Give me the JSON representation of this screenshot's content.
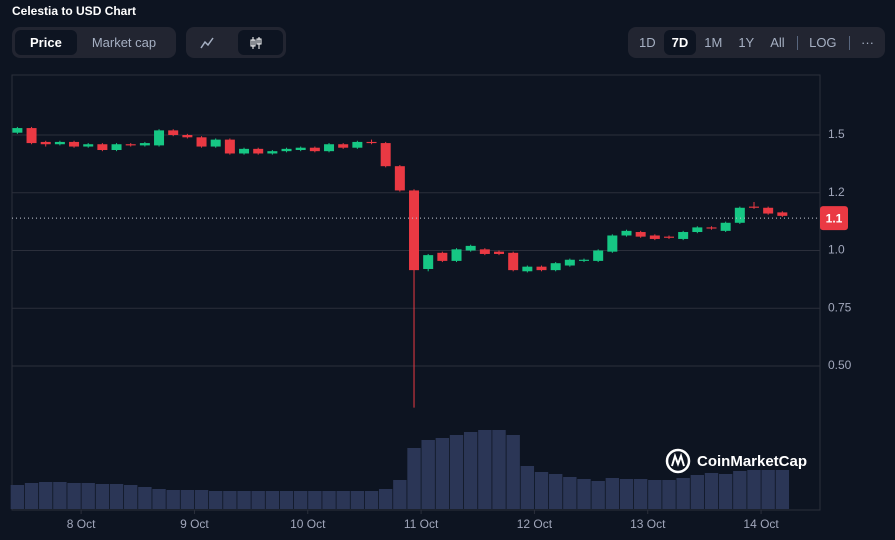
{
  "header": {
    "title": "Celestia to USD Chart"
  },
  "toolbar": {
    "modes": [
      "Price",
      "Market cap"
    ],
    "ranges": [
      "1D",
      "7D",
      "1M",
      "1Y",
      "All"
    ],
    "scale": "LOG",
    "more": "···"
  },
  "chart_data": {
    "type": "candlestick",
    "watermark": "CoinMarketCap",
    "x": [
      7.4375,
      7.5625,
      7.6875,
      7.8125,
      7.9375,
      8.0625,
      8.1875,
      8.3125,
      8.4375,
      8.5625,
      8.6875,
      8.8125,
      8.9375,
      9.0625,
      9.1875,
      9.3125,
      9.4375,
      9.5625,
      9.6875,
      9.8125,
      9.9375,
      10.0625,
      10.1875,
      10.3125,
      10.4375,
      10.5625,
      10.6875,
      10.8125,
      10.9375,
      11.0625,
      11.1875,
      11.3125,
      11.4375,
      11.5625,
      11.6875,
      11.8125,
      11.9375,
      12.0625,
      12.1875,
      12.3125,
      12.4375,
      12.5625,
      12.6875,
      12.8125,
      12.9375,
      13.0625,
      13.1875,
      13.3125,
      13.4375,
      13.5625,
      13.6875,
      13.8125,
      13.9375,
      14.0625,
      14.1875
    ],
    "open": [
      1.51,
      1.53,
      1.47,
      1.46,
      1.47,
      1.45,
      1.46,
      1.435,
      1.46,
      1.455,
      1.455,
      1.52,
      1.5,
      1.49,
      1.45,
      1.48,
      1.42,
      1.44,
      1.42,
      1.43,
      1.435,
      1.445,
      1.43,
      1.46,
      1.445,
      1.47,
      1.465,
      1.365,
      1.26,
      0.92,
      0.99,
      0.955,
      1.0,
      1.005,
      0.995,
      0.99,
      0.91,
      0.93,
      0.915,
      0.935,
      0.955,
      0.955,
      0.995,
      1.065,
      1.08,
      1.065,
      1.06,
      1.05,
      1.08,
      1.1,
      1.085,
      1.12,
      1.19,
      1.185,
      1.165
    ],
    "high": [
      1.535,
      1.535,
      1.475,
      1.475,
      1.475,
      1.465,
      1.465,
      1.465,
      1.465,
      1.47,
      1.525,
      1.525,
      1.505,
      1.495,
      1.485,
      1.485,
      1.445,
      1.445,
      1.435,
      1.445,
      1.45,
      1.45,
      1.465,
      1.465,
      1.475,
      1.48,
      1.47,
      1.37,
      1.265,
      0.985,
      0.995,
      1.01,
      1.025,
      1.01,
      1.0,
      0.995,
      0.935,
      0.935,
      0.95,
      0.965,
      0.965,
      1.005,
      1.07,
      1.09,
      1.085,
      1.07,
      1.065,
      1.085,
      1.105,
      1.105,
      1.125,
      1.19,
      1.21,
      1.19,
      1.17
    ],
    "low": [
      1.505,
      1.46,
      1.45,
      1.455,
      1.445,
      1.445,
      1.43,
      1.43,
      1.45,
      1.45,
      1.45,
      1.495,
      1.485,
      1.445,
      1.445,
      1.415,
      1.415,
      1.415,
      1.415,
      1.425,
      1.43,
      1.425,
      1.425,
      1.44,
      1.44,
      1.46,
      1.36,
      1.255,
      0.32,
      0.91,
      0.95,
      0.95,
      0.995,
      0.98,
      0.98,
      0.91,
      0.905,
      0.91,
      0.91,
      0.93,
      0.95,
      0.95,
      0.99,
      1.06,
      1.055,
      1.045,
      1.05,
      1.045,
      1.075,
      1.09,
      1.08,
      1.115,
      1.18,
      1.155,
      1.145
    ],
    "close": [
      1.53,
      1.465,
      1.46,
      1.47,
      1.45,
      1.46,
      1.435,
      1.46,
      1.455,
      1.465,
      1.52,
      1.5,
      1.49,
      1.45,
      1.48,
      1.42,
      1.44,
      1.42,
      1.43,
      1.44,
      1.445,
      1.43,
      1.46,
      1.445,
      1.47,
      1.465,
      1.365,
      1.26,
      0.915,
      0.98,
      0.955,
      1.005,
      1.02,
      0.985,
      0.985,
      0.915,
      0.93,
      0.915,
      0.945,
      0.96,
      0.96,
      1.0,
      1.065,
      1.085,
      1.06,
      1.05,
      1.055,
      1.08,
      1.1,
      1.095,
      1.12,
      1.185,
      1.185,
      1.16,
      1.15
    ],
    "volume": [
      24,
      26,
      27,
      27,
      26,
      26,
      25,
      25,
      24,
      22,
      20,
      19,
      19,
      19,
      18,
      18,
      18,
      18,
      18,
      18,
      18,
      18,
      18,
      18,
      18,
      18,
      20,
      29,
      61,
      69,
      71,
      74,
      77,
      79,
      79,
      74,
      43,
      37,
      35,
      32,
      30,
      28,
      31,
      30,
      30,
      29,
      29,
      31,
      34,
      36,
      35,
      38,
      39,
      39,
      39
    ],
    "volume_lim": [
      0,
      100
    ],
    "xlim": [
      7.39,
      14.52
    ],
    "xticks": [
      {
        "value": 8,
        "label": "8 Oct"
      },
      {
        "value": 9,
        "label": "9 Oct"
      },
      {
        "value": 10,
        "label": "10 Oct"
      },
      {
        "value": 11,
        "label": "11 Oct"
      },
      {
        "value": 12,
        "label": "12 Oct"
      },
      {
        "value": 13,
        "label": "13 Oct"
      },
      {
        "value": 14,
        "label": "14 Oct"
      }
    ],
    "ylim": [
      0.25,
      1.75
    ],
    "yticks": [
      1.5,
      {
        "value": 1.25,
        "label": "1.2"
      },
      {
        "value": 1,
        "label": "1.0"
      },
      0.75,
      {
        "value": 0.5,
        "label": "0.50"
      }
    ],
    "last_price": {
      "value": 1.14,
      "label": "1.1"
    },
    "up_color": "#16c784",
    "down_color": "#ea3943",
    "volume_color": "#2b3656",
    "grid": true
  }
}
